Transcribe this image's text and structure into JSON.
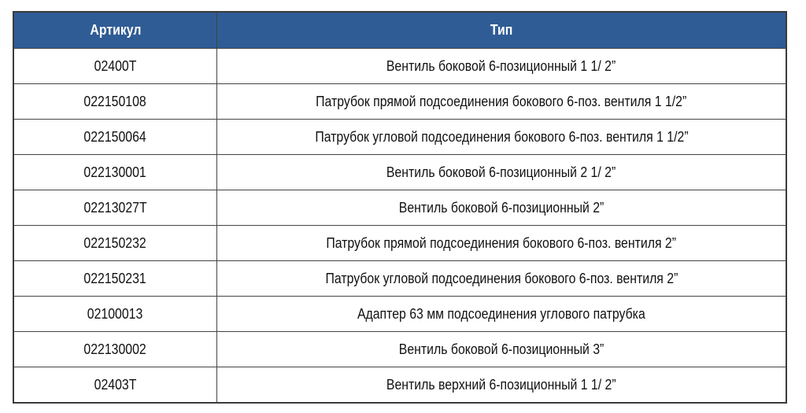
{
  "table": {
    "headers": [
      "Артикул",
      "Тип"
    ],
    "rows": [
      {
        "article": "02400T",
        "type": "Вентиль боковой 6-позиционный 1 1/ 2”"
      },
      {
        "article": "022150108",
        "type": "Патрубок прямой подсоединения бокового 6-поз. вентиля 1 1/2”"
      },
      {
        "article": "022150064",
        "type": "Патрубок угловой подсоединения бокового 6-поз. вентиля 1 1/2”"
      },
      {
        "article": "022130001",
        "type": "Вентиль боковой 6-позиционный 2 1/ 2”"
      },
      {
        "article": "02213027T",
        "type": "Вентиль боковой 6-позиционный 2”"
      },
      {
        "article": "022150232",
        "type": "Патрубок прямой подсоединения бокового 6-поз. вентиля 2”"
      },
      {
        "article": "022150231",
        "type": "Патрубок угловой подсоединения бокового 6-поз. вентиля 2”"
      },
      {
        "article": "02100013",
        "type": "Адаптер 63 мм подсоединения углового патрубка"
      },
      {
        "article": "022130002",
        "type": "Вентиль боковой 6-позиционный 3”"
      },
      {
        "article": "02403T",
        "type": "Вентиль верхний 6-позиционный 1 1/ 2”"
      }
    ]
  },
  "colors": {
    "header_bg": "#2f5c95",
    "header_text": "#ffffff"
  }
}
